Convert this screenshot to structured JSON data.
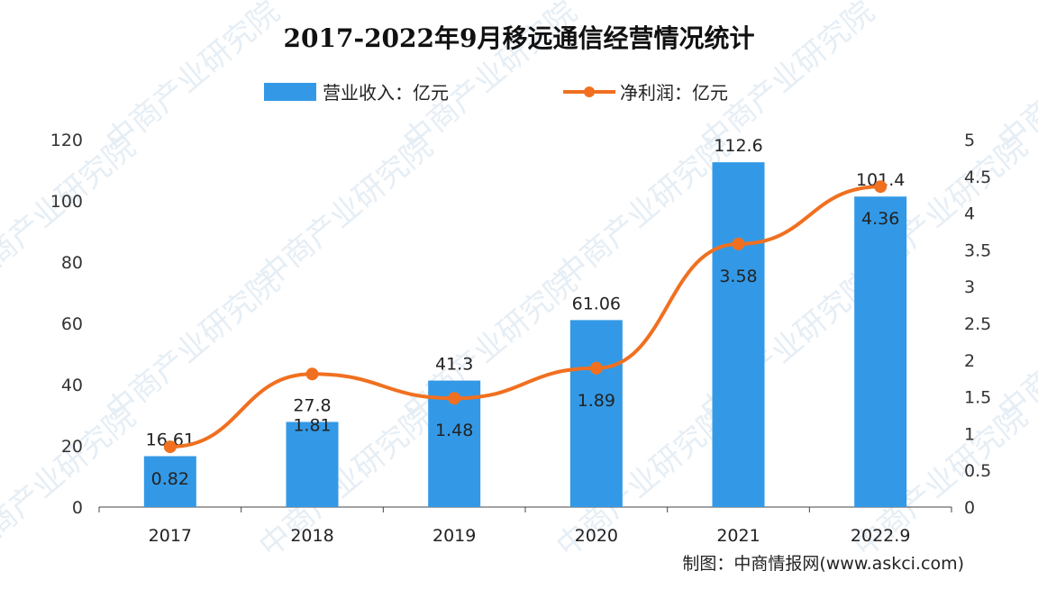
{
  "chart_data": {
    "type": "bar+line",
    "title": "2017-2022年9月移远通信经营情况统计",
    "categories": [
      "2017",
      "2018",
      "2019",
      "2020",
      "2021",
      "2022.9"
    ],
    "series": [
      {
        "name": "营业收入：亿元",
        "type": "bar",
        "axis": "left",
        "color": "#3399e6",
        "values": [
          16.61,
          27.8,
          41.3,
          61.06,
          112.6,
          101.4
        ],
        "labels": [
          "16.61",
          "27.8",
          "41.3",
          "61.06",
          "112.6",
          "101.4"
        ]
      },
      {
        "name": "净利润：亿元",
        "type": "line",
        "axis": "right",
        "color": "#f07020",
        "values": [
          0.82,
          1.81,
          1.48,
          1.89,
          3.58,
          4.36
        ],
        "labels": [
          "0.82",
          "1.81",
          "1.48",
          "1.89",
          "3.58",
          "4.36"
        ]
      }
    ],
    "y_left": {
      "range": [
        0,
        120
      ],
      "ticks": [
        "0",
        "20",
        "40",
        "60",
        "80",
        "100",
        "120"
      ]
    },
    "y_right": {
      "range": [
        0,
        5
      ],
      "ticks": [
        "0",
        "0.5",
        "1",
        "1.5",
        "2",
        "2.5",
        "3",
        "3.5",
        "4",
        "4.5",
        "5"
      ]
    },
    "grid": false,
    "legend": "top"
  },
  "source": "制图：中商情报网(www.askci.com)",
  "watermark": "中商产业研究院"
}
